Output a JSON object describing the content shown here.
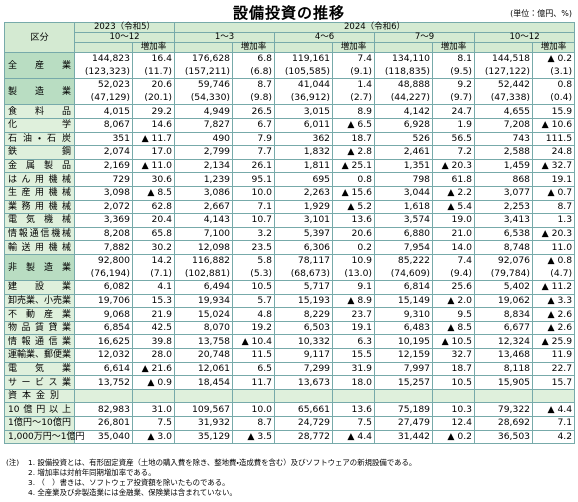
{
  "title": "設備投資の推移",
  "unit": "(単位：億円、%)",
  "table": {
    "corner": "区分",
    "years": [
      "2023（令和5）",
      "2024（令和6）"
    ],
    "periods": [
      "10～12",
      "1～3",
      "4～6",
      "7～9",
      "10～12"
    ],
    "growth_label": "増加率",
    "rows": [
      {
        "label": "全産業",
        "values": [
          "144,823",
          "16.4",
          "176,628",
          "6.8",
          "119,161",
          "7.4",
          "134,110",
          "8.1",
          "144,518",
          "▲ 0.2"
        ],
        "sub": [
          "(123,323)",
          "(11.7)",
          "(157,211)",
          "(6.8)",
          "(105,585)",
          "(9.1)",
          "(118,835)",
          "(9.5)",
          "(127,122)",
          "(3.1)"
        ]
      },
      {
        "label": "製造業",
        "values": [
          "52,023",
          "20.6",
          "59,746",
          "8.7",
          "41,044",
          "1.4",
          "48,888",
          "9.2",
          "52,442",
          "0.8"
        ],
        "sub": [
          "(47,129)",
          "(20.1)",
          "(54,330)",
          "(9.8)",
          "(36,912)",
          "(2.7)",
          "(44,227)",
          "(9.7)",
          "(47,338)",
          "(0.4)"
        ]
      },
      {
        "label": "食料品",
        "values": [
          "4,015",
          "29.2",
          "4,949",
          "26.5",
          "3,015",
          "8.9",
          "4,142",
          "24.7",
          "4,655",
          "15.9"
        ]
      },
      {
        "label": "化学",
        "values": [
          "8,067",
          "14.6",
          "7,827",
          "6.7",
          "6,011",
          "▲ 6.5",
          "6,928",
          "1.9",
          "7,208",
          "▲ 10.6"
        ]
      },
      {
        "label": "石油・石炭",
        "values": [
          "351",
          "▲ 11.7",
          "490",
          "7.9",
          "362",
          "18.7",
          "526",
          "56.5",
          "743",
          "111.5"
        ]
      },
      {
        "label": "鉄鋼",
        "values": [
          "2,074",
          "17.0",
          "2,799",
          "7.7",
          "1,832",
          "▲ 2.8",
          "2,461",
          "7.2",
          "2,588",
          "24.8"
        ]
      },
      {
        "label": "金属製品",
        "values": [
          "2,169",
          "▲ 11.0",
          "2,134",
          "26.1",
          "1,811",
          "▲ 25.1",
          "1,351",
          "▲ 20.3",
          "1,459",
          "▲ 32.7"
        ]
      },
      {
        "label": "はん用機械",
        "values": [
          "729",
          "30.6",
          "1,239",
          "95.1",
          "695",
          "0.8",
          "798",
          "61.8",
          "868",
          "19.1"
        ]
      },
      {
        "label": "生産用機械",
        "values": [
          "3,098",
          "▲ 8.5",
          "3,086",
          "10.0",
          "2,263",
          "▲ 15.6",
          "3,044",
          "▲ 2.2",
          "3,077",
          "▲ 0.7"
        ]
      },
      {
        "label": "業務用機械",
        "values": [
          "2,072",
          "62.8",
          "2,667",
          "7.1",
          "1,929",
          "▲ 5.2",
          "1,618",
          "▲ 5.4",
          "2,253",
          "8.7"
        ]
      },
      {
        "label": "電気機械",
        "values": [
          "3,369",
          "20.4",
          "4,143",
          "10.7",
          "3,101",
          "13.6",
          "3,574",
          "19.0",
          "3,413",
          "1.3"
        ]
      },
      {
        "label": "情報通信機械",
        "values": [
          "8,208",
          "65.8",
          "7,100",
          "3.2",
          "5,397",
          "20.6",
          "6,880",
          "21.0",
          "6,538",
          "▲ 20.3"
        ]
      },
      {
        "label": "輸送用機械",
        "values": [
          "7,882",
          "30.2",
          "12,098",
          "23.5",
          "6,306",
          "0.2",
          "7,954",
          "14.0",
          "8,748",
          "11.0"
        ]
      },
      {
        "label": "非製造業",
        "values": [
          "92,800",
          "14.2",
          "116,882",
          "5.8",
          "78,117",
          "10.9",
          "85,222",
          "7.4",
          "92,076",
          "▲ 0.8"
        ],
        "sub": [
          "(76,194)",
          "(7.1)",
          "(102,881)",
          "(5.3)",
          "(68,673)",
          "(13.0)",
          "(74,609)",
          "(9.4)",
          "(79,784)",
          "(4.7)"
        ]
      },
      {
        "label": "建設業",
        "values": [
          "6,082",
          "4.1",
          "6,494",
          "10.5",
          "5,717",
          "9.1",
          "6,814",
          "25.6",
          "5,402",
          "▲ 11.2"
        ]
      },
      {
        "label": "卸売業、小売業",
        "values": [
          "19,706",
          "15.3",
          "19,934",
          "5.7",
          "15,193",
          "▲ 8.9",
          "15,149",
          "▲ 2.0",
          "19,062",
          "▲ 3.3"
        ]
      },
      {
        "label": "不動産業",
        "values": [
          "9,068",
          "21.9",
          "15,024",
          "4.8",
          "8,229",
          "23.7",
          "9,310",
          "9.5",
          "8,834",
          "▲ 2.6"
        ]
      },
      {
        "label": "物品賃貸業",
        "values": [
          "6,854",
          "42.5",
          "8,070",
          "19.2",
          "6,503",
          "19.1",
          "6,483",
          "▲ 8.5",
          "6,677",
          "▲ 2.6"
        ]
      },
      {
        "label": "情報通信業",
        "values": [
          "16,625",
          "39.8",
          "13,758",
          "▲ 10.4",
          "10,332",
          "6.3",
          "10,195",
          "▲ 10.5",
          "12,324",
          "▲ 25.9"
        ]
      },
      {
        "label": "運輸業、郵便業",
        "values": [
          "12,032",
          "28.0",
          "20,748",
          "11.5",
          "9,117",
          "15.5",
          "12,159",
          "32.7",
          "13,468",
          "11.9"
        ]
      },
      {
        "label": "電気業",
        "values": [
          "6,614",
          "▲ 21.6",
          "12,061",
          "6.5",
          "7,299",
          "31.9",
          "7,997",
          "18.7",
          "8,118",
          "22.7"
        ]
      },
      {
        "label": "サービス業",
        "values": [
          "13,752",
          "▲ 0.9",
          "18,454",
          "11.7",
          "13,673",
          "18.0",
          "15,257",
          "10.5",
          "15,905",
          "15.7"
        ]
      },
      {
        "label": "資本金別"
      },
      {
        "label": "10億円以上",
        "values": [
          "82,983",
          "31.0",
          "109,567",
          "10.0",
          "65,661",
          "13.6",
          "75,189",
          "10.3",
          "79,322",
          "▲ 4.4"
        ]
      },
      {
        "label": "1億円～10億円",
        "values": [
          "26,801",
          "7.5",
          "31,932",
          "8.7",
          "24,729",
          "7.5",
          "27,479",
          "12.4",
          "28,692",
          "7.1"
        ]
      },
      {
        "label": "1,000万円～1億円",
        "values": [
          "35,040",
          "▲ 3.0",
          "35,129",
          "▲ 3.5",
          "28,772",
          "▲ 4.4",
          "31,442",
          "▲ 0.2",
          "36,503",
          "4.2"
        ]
      }
    ]
  },
  "notes": {
    "prefix": "(注)",
    "items": [
      "1.  設備投資とは、有形固定資産（土地の購入費を除き、整地費・造成費を含む）及びソフトウェアの新規設備である。",
      "2.  増加率は対前年同期増加率である。",
      "3.  （　）書きは、ソフトウェア投資額を除いたものである。",
      "4.  全産業及び非製造業には金融業、保険業は含まれていない。"
    ]
  }
}
